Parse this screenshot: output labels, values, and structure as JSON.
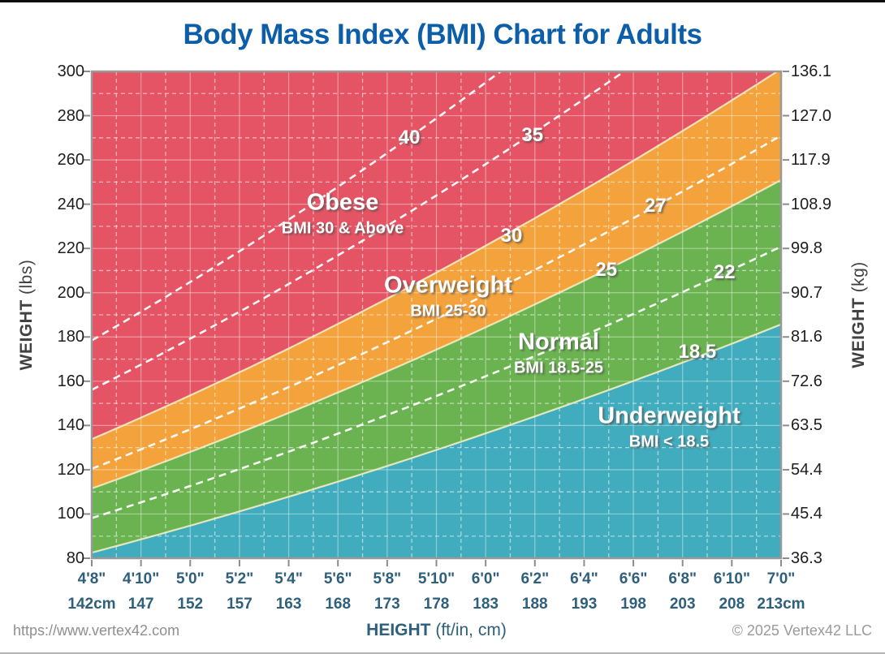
{
  "header": {
    "title": "Body Mass Index (BMI) Chart for Adults",
    "title_color": "#0c5ea9"
  },
  "axes": {
    "left_title_bold": "WEIGHT",
    "left_title_unit": " (lbs)",
    "right_title_bold": "WEIGHT",
    "right_title_unit": " (kg)"
  },
  "footer": {
    "website": "https://www.vertex42.com",
    "xaxis_title_bold": "HEIGHT",
    "xaxis_title_rest": " (ft/in, cm)",
    "copyright": "© 2025 Vertex42 LLC"
  },
  "chart_data": {
    "type": "area",
    "title": "Body Mass Index (BMI) Chart for Adults",
    "bmi_formula": "weight_lb = BMI * height_in^2 / 703",
    "grid": "white major solid every 20 lb / 2 in, white dashed minor every 10 lb / 1 in",
    "x_axis": {
      "label": "HEIGHT (ft/in, cm)",
      "min_in": 56,
      "max_in": 84,
      "ticks": [
        {
          "ftin": "4'8\"",
          "cm": "142cm"
        },
        {
          "ftin": "4'10\"",
          "cm": "147"
        },
        {
          "ftin": "5'0\"",
          "cm": "152"
        },
        {
          "ftin": "5'2\"",
          "cm": "157"
        },
        {
          "ftin": "5'4\"",
          "cm": "163"
        },
        {
          "ftin": "5'6\"",
          "cm": "168"
        },
        {
          "ftin": "5'8\"",
          "cm": "173"
        },
        {
          "ftin": "5'10\"",
          "cm": "178"
        },
        {
          "ftin": "6'0\"",
          "cm": "183"
        },
        {
          "ftin": "6'2\"",
          "cm": "188"
        },
        {
          "ftin": "6'4\"",
          "cm": "193"
        },
        {
          "ftin": "6'6\"",
          "cm": "198"
        },
        {
          "ftin": "6'8\"",
          "cm": "203"
        },
        {
          "ftin": "6'10\"",
          "cm": "208"
        },
        {
          "ftin": "7'0\"",
          "cm": "213cm"
        }
      ]
    },
    "y_axis_left": {
      "label": "WEIGHT (lbs)",
      "min": 80,
      "max": 300,
      "ticks": [
        80,
        100,
        120,
        140,
        160,
        180,
        200,
        220,
        240,
        260,
        280,
        300
      ]
    },
    "y_axis_right": {
      "label": "WEIGHT (kg)",
      "ticks": [
        "36.3",
        "45.4",
        "54.4",
        "63.5",
        "72.6",
        "81.6",
        "90.7",
        "99.8",
        "108.9",
        "117.9",
        "127.0",
        "136.1"
      ]
    },
    "zones": [
      {
        "label": "Obese",
        "sublabel": "BMI 30 & Above",
        "bmi_range": "30+",
        "color": "#e55464"
      },
      {
        "label": "Overweight",
        "sublabel": "BMI 25-30",
        "bmi_range": "25-30",
        "upper_bmi": 30,
        "color": "#f4a23b"
      },
      {
        "label": "Normal",
        "sublabel": "BMI 18.5-25",
        "bmi_range": "18.5-25",
        "upper_bmi": 25,
        "color": "#6bb351"
      },
      {
        "label": "Underweight",
        "sublabel": "BMI < 18.5",
        "bmi_range": "<18.5",
        "upper_bmi": 18.5,
        "color": "#41acbe"
      }
    ],
    "bmi_lines": [
      {
        "bmi": 40,
        "label": "40",
        "style": "dashed"
      },
      {
        "bmi": 35,
        "label": "35",
        "style": "dashed"
      },
      {
        "bmi": 30,
        "label": "30",
        "style": "boundary"
      },
      {
        "bmi": 27,
        "label": "27",
        "style": "dashed"
      },
      {
        "bmi": 25,
        "label": "25",
        "style": "boundary"
      },
      {
        "bmi": 22,
        "label": "22",
        "style": "dashed"
      },
      {
        "bmi": 18.5,
        "label": "18.5",
        "style": "boundary"
      }
    ]
  }
}
